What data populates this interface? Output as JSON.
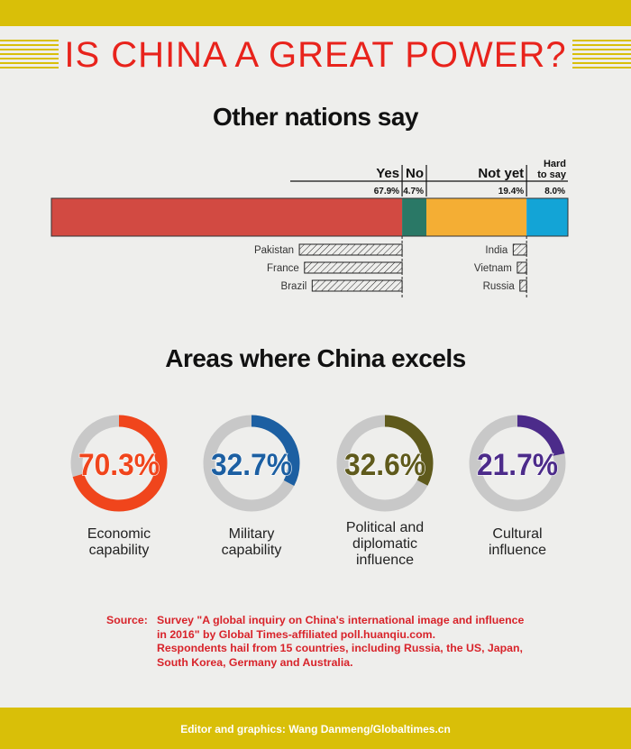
{
  "title": "IS CHINA A GREAT POWER?",
  "section1": {
    "heading": "Other nations say"
  },
  "section2": {
    "heading": "Areas where China excels"
  },
  "colors": {
    "gold": "#d9bf08",
    "yes": "#d24a42",
    "no": "#2a7866",
    "notyet": "#f4ae34",
    "hard": "#13a4d6"
  },
  "chart_data": [
    {
      "type": "bar",
      "categories": [
        "Yes",
        "No",
        "Not yet",
        "Hard to say"
      ],
      "values": [
        67.9,
        4.7,
        19.4,
        8.0
      ],
      "value_labels": [
        "67.9%",
        "4.7%",
        "19.4%",
        "8.0%"
      ],
      "colors": [
        "#d24a42",
        "#2a7866",
        "#f4ae34",
        "#13a4d6"
      ],
      "stacked": true,
      "hard_to_say_lines": [
        "Hard",
        "to say"
      ]
    },
    {
      "type": "bar",
      "categories": [
        "Pakistan",
        "France",
        "Brazil"
      ],
      "values": [
        20,
        19,
        17.5
      ],
      "direction": "left",
      "anchored_to": "Yes"
    },
    {
      "type": "bar",
      "categories": [
        "India",
        "Vietnam",
        "Russia"
      ],
      "values": [
        2.6,
        1.8,
        1.3
      ],
      "direction": "left",
      "anchored_to": "Not yet"
    },
    {
      "type": "pie",
      "items": [
        {
          "value": 70.3,
          "label": "70.3%",
          "lines": [
            "Economic",
            "capability"
          ],
          "color": "#f0451c"
        },
        {
          "value": 32.7,
          "label": "32.7%",
          "lines": [
            "Military",
            "capability"
          ],
          "color": "#1c5fa2"
        },
        {
          "value": 32.6,
          "label": "32.6%",
          "lines": [
            "Political and",
            "diplomatic",
            "influence"
          ],
          "color": "#5f5a1c"
        },
        {
          "value": 21.7,
          "label": "21.7%",
          "lines": [
            "Cultural",
            "influence"
          ],
          "color": "#4c2b8a"
        }
      ]
    }
  ],
  "source": {
    "label": "Source:",
    "lines": [
      "Survey \"A global inquiry on China's international image and influence",
      "in 2016\" by Global Times-affiliated poll.huanqiu.com.",
      "Respondents hail from 15 countries, including Russia, the US, Japan,",
      "South Korea, Germany and Australia."
    ]
  },
  "credit": "Editor and graphics: Wang Danmeng/Globaltimes.cn"
}
